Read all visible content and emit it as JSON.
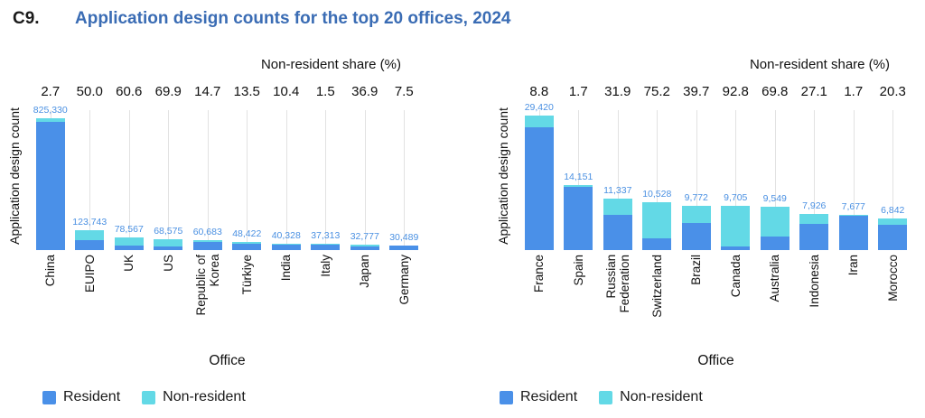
{
  "header": {
    "code": "C9.",
    "title": "Application design counts for the top 20 offices, 2024"
  },
  "colors": {
    "resident": "#4A90E8",
    "non_resident": "#63D9E6",
    "value_label": "#4A90E2",
    "title_accent": "#3A6CB4",
    "gridline": "#E2E2E2"
  },
  "chart_data": [
    {
      "type": "bar",
      "stacked": true,
      "top_axis_label": "Non-resident share (%)",
      "ylabel": "Application design count",
      "xlabel": "Office",
      "legend": [
        "Resident",
        "Non-resident"
      ],
      "categories": [
        "China",
        "EUIPO",
        "UK",
        "US",
        "Republic of\nKorea",
        "Türkiye",
        "India",
        "Italy",
        "Japan",
        "Germany"
      ],
      "totals": [
        825330,
        123743,
        78567,
        68575,
        60683,
        48422,
        40328,
        37313,
        32777,
        30489
      ],
      "total_labels": [
        "825,330",
        "123,743",
        "78,567",
        "68,575",
        "60,683",
        "48,422",
        "40,328",
        "37,313",
        "32,777",
        "30,489"
      ],
      "non_resident_share_pct": [
        2.7,
        50.0,
        60.6,
        69.9,
        14.7,
        13.5,
        10.4,
        1.5,
        36.9,
        7.5
      ],
      "non_resident_share_labels": [
        "2.7",
        "50.0",
        "60.6",
        "69.9",
        "14.7",
        "13.5",
        "10.4",
        "1.5",
        "36.9",
        "7.5"
      ]
    },
    {
      "type": "bar",
      "stacked": true,
      "top_axis_label": "Non-resident share (%)",
      "ylabel": "Application design count",
      "xlabel": "Office",
      "legend": [
        "Resident",
        "Non-resident"
      ],
      "categories": [
        "France",
        "Spain",
        "Russian\nFederation",
        "Switzerland",
        "Brazil",
        "Canada",
        "Australia",
        "Indonesia",
        "Iran",
        "Morocco"
      ],
      "totals": [
        29420,
        14151,
        11337,
        10528,
        9772,
        9705,
        9549,
        7926,
        7677,
        6842
      ],
      "total_labels": [
        "29,420",
        "14,151",
        "11,337",
        "10,528",
        "9,772",
        "9,705",
        "9,549",
        "7,926",
        "7,677",
        "6,842"
      ],
      "non_resident_share_pct": [
        8.8,
        1.7,
        31.9,
        75.2,
        39.7,
        92.8,
        69.8,
        27.1,
        1.7,
        20.3
      ],
      "non_resident_share_labels": [
        "8.8",
        "1.7",
        "31.9",
        "75.2",
        "39.7",
        "92.8",
        "69.8",
        "27.1",
        "1.7",
        "20.3"
      ]
    }
  ]
}
